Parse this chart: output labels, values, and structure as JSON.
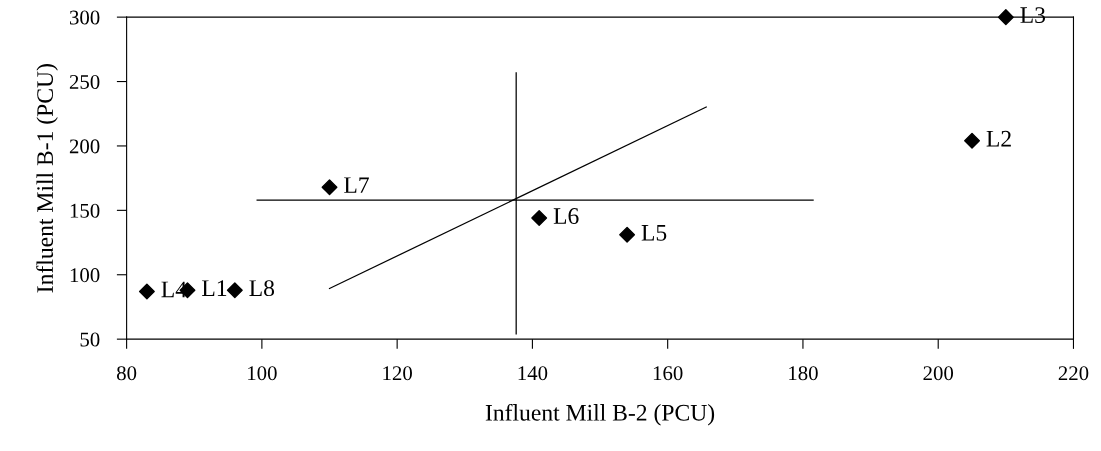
{
  "chart_data": {
    "type": "scatter",
    "xlabel": "Influent Mill B-2 (PCU)",
    "ylabel": "Influent Mill B-1 (PCU)",
    "xlim": [
      80,
      220
    ],
    "xticks": [
      80,
      100,
      120,
      140,
      160,
      180,
      200,
      220
    ],
    "ylim": [
      50,
      300
    ],
    "yticks": [
      50,
      100,
      150,
      200,
      250,
      300
    ],
    "grid": false,
    "legend": false,
    "series": [
      {
        "color": "#000000",
        "marker": "diamond",
        "x": [
          89,
          205,
          210,
          83,
          154,
          141,
          110,
          96
        ],
        "values": [
          88,
          204,
          300,
          87,
          131,
          144,
          168,
          88
        ]
      },
      {
        "type": "line",
        "color": "#000000",
        "marker": "none",
        "line_style": "solid",
        "x": [
          99.3,
          181.5
        ],
        "values": [
          158,
          158
        ]
      },
      {
        "type": "line",
        "color": "#000000",
        "marker": "none",
        "line_style": "solid",
        "x": [
          137.6,
          137.6
        ],
        "values": [
          256.8,
          54
        ]
      },
      {
        "type": "line",
        "color": "#000000",
        "marker": "none",
        "line_style": "solid",
        "x": [
          110,
          165.7
        ],
        "values": [
          89.3,
          230.2
        ]
      }
    ],
    "annotations": [
      {
        "text": "L1",
        "x": 89,
        "y": 88
      },
      {
        "text": "L2",
        "x": 205,
        "y": 204
      },
      {
        "text": "L3",
        "x": 210,
        "y": 300
      },
      {
        "text": "L4",
        "x": 83,
        "y": 87
      },
      {
        "text": "L5",
        "x": 154,
        "y": 131
      },
      {
        "text": "L6",
        "x": 141,
        "y": 144
      },
      {
        "text": "L7",
        "x": 110,
        "y": 168
      },
      {
        "text": "L8",
        "x": 96,
        "y": 88
      }
    ]
  }
}
